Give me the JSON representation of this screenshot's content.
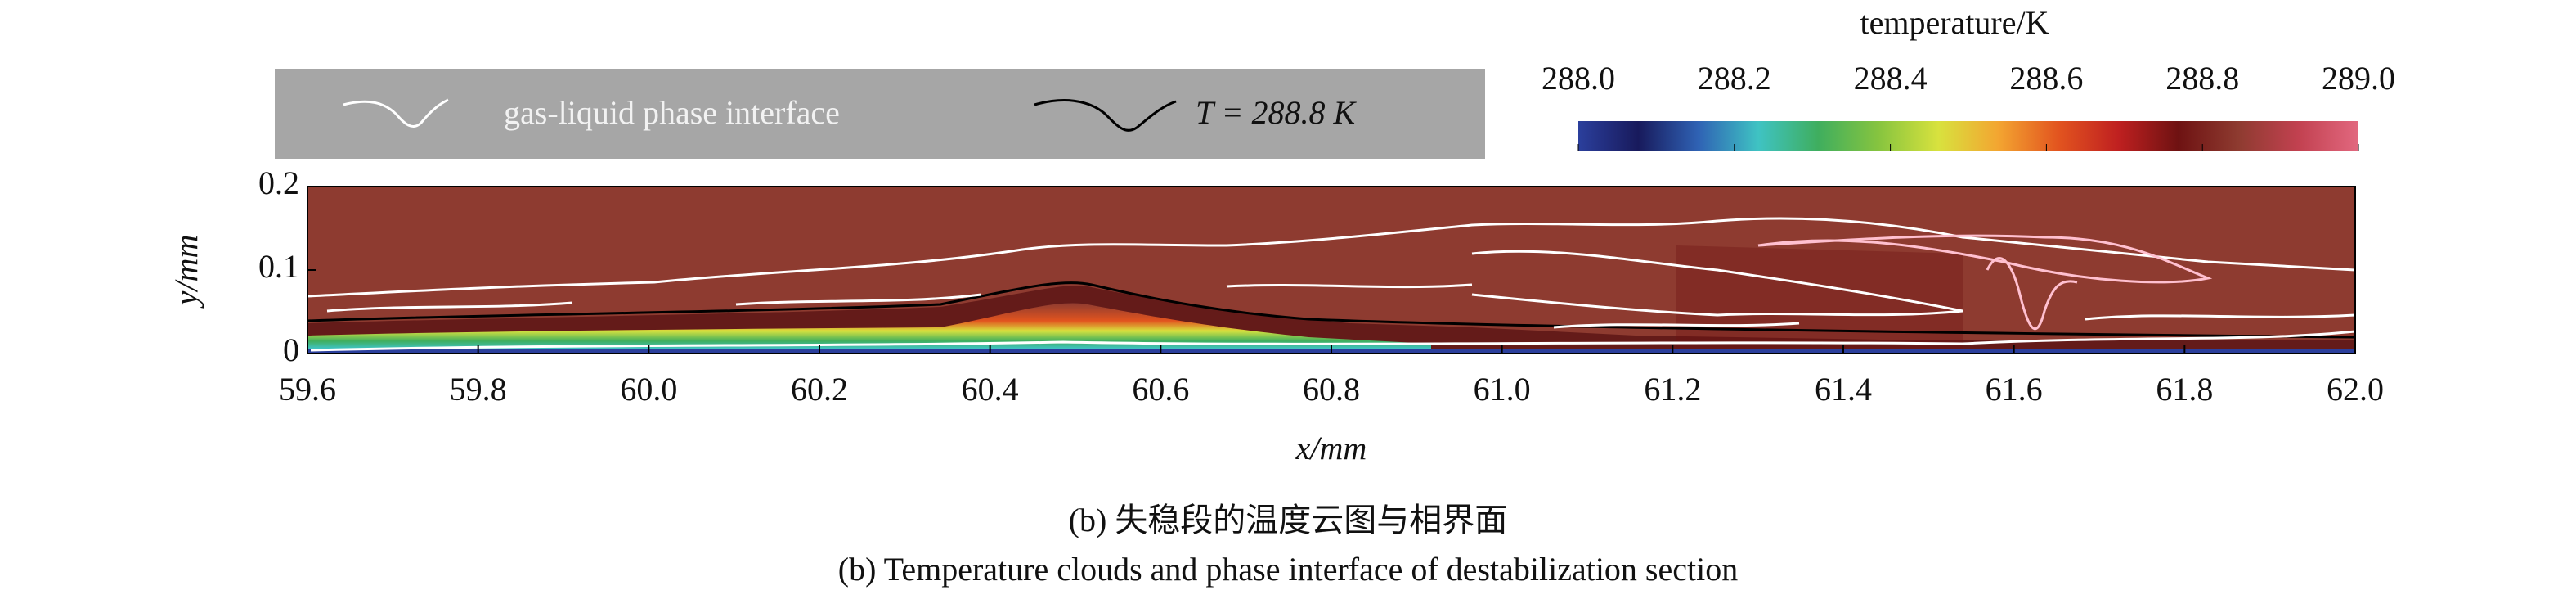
{
  "chart_data": {
    "type": "contour",
    "caption_cn": "(b) 失稳段的温度云图与相界面",
    "caption_en": "(b) Temperature clouds and phase interface of destabilization section",
    "xlabel": "x/mm",
    "ylabel": "y/mm",
    "xlim": [
      59.6,
      62.0
    ],
    "xticks": [
      59.6,
      59.8,
      {
        "value": 60,
        "label": "60.0"
      },
      60.2,
      60.4,
      60.6,
      60.8,
      {
        "value": 61,
        "label": "61.0"
      },
      61.2,
      61.4,
      61.6,
      61.8,
      {
        "value": 62,
        "label": "62.0"
      }
    ],
    "ylim": [
      0,
      0.2
    ],
    "yticks": [
      0,
      0.1,
      0.2
    ],
    "colorbar": {
      "label": "temperature/K",
      "clim": [
        288,
        289
      ],
      "ticks": [
        {
          "value": 288,
          "label": "288.0"
        },
        288.2,
        288.4,
        288.6,
        288.8,
        {
          "value": 289,
          "label": "289.0"
        }
      ],
      "colormap": [
        "#2b3f9c",
        "#181a5c",
        "#2f62b4",
        "#3fc3c3",
        "#3fae5e",
        "#86c43f",
        "#d8e23e",
        "#f3a531",
        "#e2541f",
        "#bf2020",
        "#6e1212",
        "#8e3b30",
        "#c24150",
        "#e2687f"
      ]
    },
    "legend": [
      {
        "name": "gas-liquid phase interface",
        "color": "#ffffff"
      },
      {
        "name": "T = 288.8 K",
        "color": "#000000"
      }
    ]
  }
}
